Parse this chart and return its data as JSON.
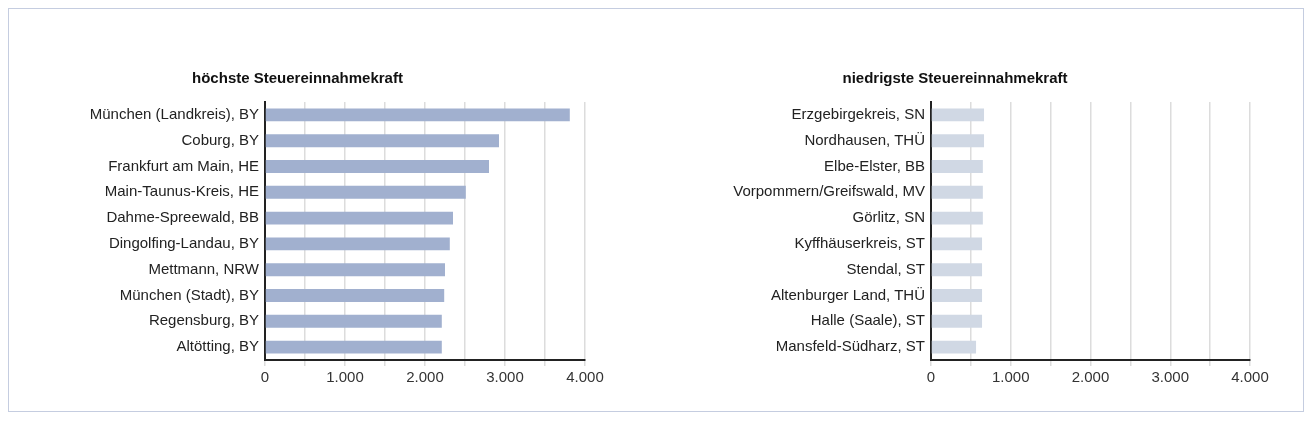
{
  "chart_data": [
    {
      "type": "bar",
      "orientation": "horizontal",
      "title": "höchste Steuereinnahmekraft",
      "categories": [
        "München (Landkreis), BY",
        "Coburg, BY",
        "Frankfurt am Main, HE",
        "Main-Taunus-Kreis, HE",
        "Dahme-Spreewald, BB",
        "Dingolfing-Landau, BY",
        "Mettmann, NRW",
        "München (Stadt), BY",
        "Regensburg, BY",
        "Altötting, BY"
      ],
      "values": [
        3810,
        2925,
        2800,
        2510,
        2350,
        2310,
        2250,
        2240,
        2210,
        2210
      ],
      "color": "#a1b0cf",
      "xlim": [
        0,
        4000
      ],
      "xticks": [
        0,
        {
          "value": 500,
          "label": null
        },
        {
          "value": 1000,
          "label": "1.000"
        },
        {
          "value": 1500,
          "label": null
        },
        {
          "value": 2000,
          "label": "2.000"
        },
        {
          "value": 2500,
          "label": null
        },
        {
          "value": 3000,
          "label": "3.000"
        },
        {
          "value": 3500,
          "label": null
        },
        {
          "value": 4000,
          "label": "4.000"
        }
      ],
      "grid": "x"
    },
    {
      "type": "bar",
      "orientation": "horizontal",
      "title": "niedrigste Steuereinnahmekraft",
      "categories": [
        "Erzgebirgekreis, SN",
        "Nordhausen, THÜ",
        "Elbe-Elster, BB",
        "Vorpommern/Greifswald, MV",
        "Görlitz, SN",
        "Kyffhäuserkreis, ST",
        "Stendal, ST",
        "Altenburger Land, THÜ",
        "Halle (Saale), ST",
        "Mansfeld-Südharz, ST"
      ],
      "values": [
        665,
        665,
        650,
        650,
        650,
        640,
        640,
        640,
        640,
        565
      ],
      "color": "#d0d8e4",
      "xlim": [
        0,
        4000
      ],
      "xticks": [
        0,
        {
          "value": 500,
          "label": null
        },
        {
          "value": 1000,
          "label": "1.000"
        },
        {
          "value": 1500,
          "label": null
        },
        {
          "value": 2000,
          "label": "2.000"
        },
        {
          "value": 2500,
          "label": null
        },
        {
          "value": 3000,
          "label": "3.000"
        },
        {
          "value": 3500,
          "label": null
        },
        {
          "value": 4000,
          "label": "4.000"
        }
      ],
      "grid": "x"
    }
  ]
}
